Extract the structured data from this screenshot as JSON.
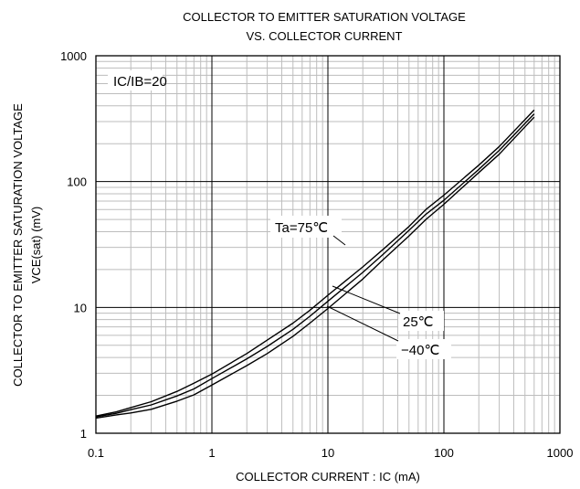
{
  "chart_data": {
    "type": "line",
    "title_lines": [
      "COLLECTOR TO EMITTER SATURATION VOLTAGE",
      "VS. COLLECTOR CURRENT"
    ],
    "xlabel": "COLLECTOR CURRENT : IC (mA)",
    "ylabel_lines": [
      "COLLECTOR TO EMITTER SATURATION VOLTAGE",
      "VCE(sat) (mV)"
    ],
    "x_scale": "log",
    "y_scale": "log",
    "xlim": [
      0.1,
      1000
    ],
    "ylim": [
      1,
      1000
    ],
    "x_ticks": [
      {
        "value": 0.1,
        "label": "0.1"
      },
      {
        "value": 1,
        "label": "1"
      },
      {
        "value": 10,
        "label": "10"
      },
      {
        "value": 100,
        "label": "100"
      },
      {
        "value": 1000,
        "label": "1000"
      }
    ],
    "y_ticks": [
      {
        "value": 1,
        "label": "1"
      },
      {
        "value": 10,
        "label": "10"
      },
      {
        "value": 100,
        "label": "100"
      },
      {
        "value": 1000,
        "label": "1000"
      }
    ],
    "grid": true,
    "condition": "IC/IB=20",
    "series": [
      {
        "name": "Ta=75℃",
        "x": [
          0.1,
          0.15,
          0.2,
          0.3,
          0.5,
          0.7,
          1,
          2,
          3,
          5,
          7,
          10,
          20,
          30,
          50,
          70,
          100,
          200,
          300,
          600
        ],
        "y": [
          1.37,
          1.48,
          1.6,
          1.78,
          2.15,
          2.5,
          2.95,
          4.3,
          5.5,
          7.5,
          9.5,
          12.5,
          21,
          29,
          44,
          60,
          78,
          135,
          190,
          370
        ]
      },
      {
        "name": "25℃",
        "x": [
          0.1,
          0.15,
          0.2,
          0.3,
          0.5,
          0.7,
          1,
          2,
          3,
          5,
          7,
          10,
          20,
          30,
          50,
          70,
          100,
          200,
          300,
          600
        ],
        "y": [
          1.35,
          1.44,
          1.54,
          1.68,
          1.98,
          2.25,
          2.72,
          3.9,
          4.9,
          6.7,
          8.5,
          11.2,
          19,
          26.5,
          41,
          55,
          71,
          125,
          177,
          345
        ]
      },
      {
        "name": "−40℃",
        "x": [
          0.1,
          0.15,
          0.2,
          0.3,
          0.5,
          0.7,
          1,
          2,
          3,
          5,
          7,
          10,
          20,
          30,
          50,
          70,
          100,
          200,
          300,
          600
        ],
        "y": [
          1.32,
          1.4,
          1.45,
          1.55,
          1.8,
          2.02,
          2.42,
          3.45,
          4.3,
          5.9,
          7.5,
          9.8,
          16.8,
          24,
          37,
          50,
          66,
          118,
          165,
          325
        ]
      }
    ],
    "colors": {
      "background": "#ffffff",
      "frame": "#000000",
      "major_grid": "#000000",
      "minor_grid": "#bdbdbd",
      "curve": "#000000"
    }
  }
}
